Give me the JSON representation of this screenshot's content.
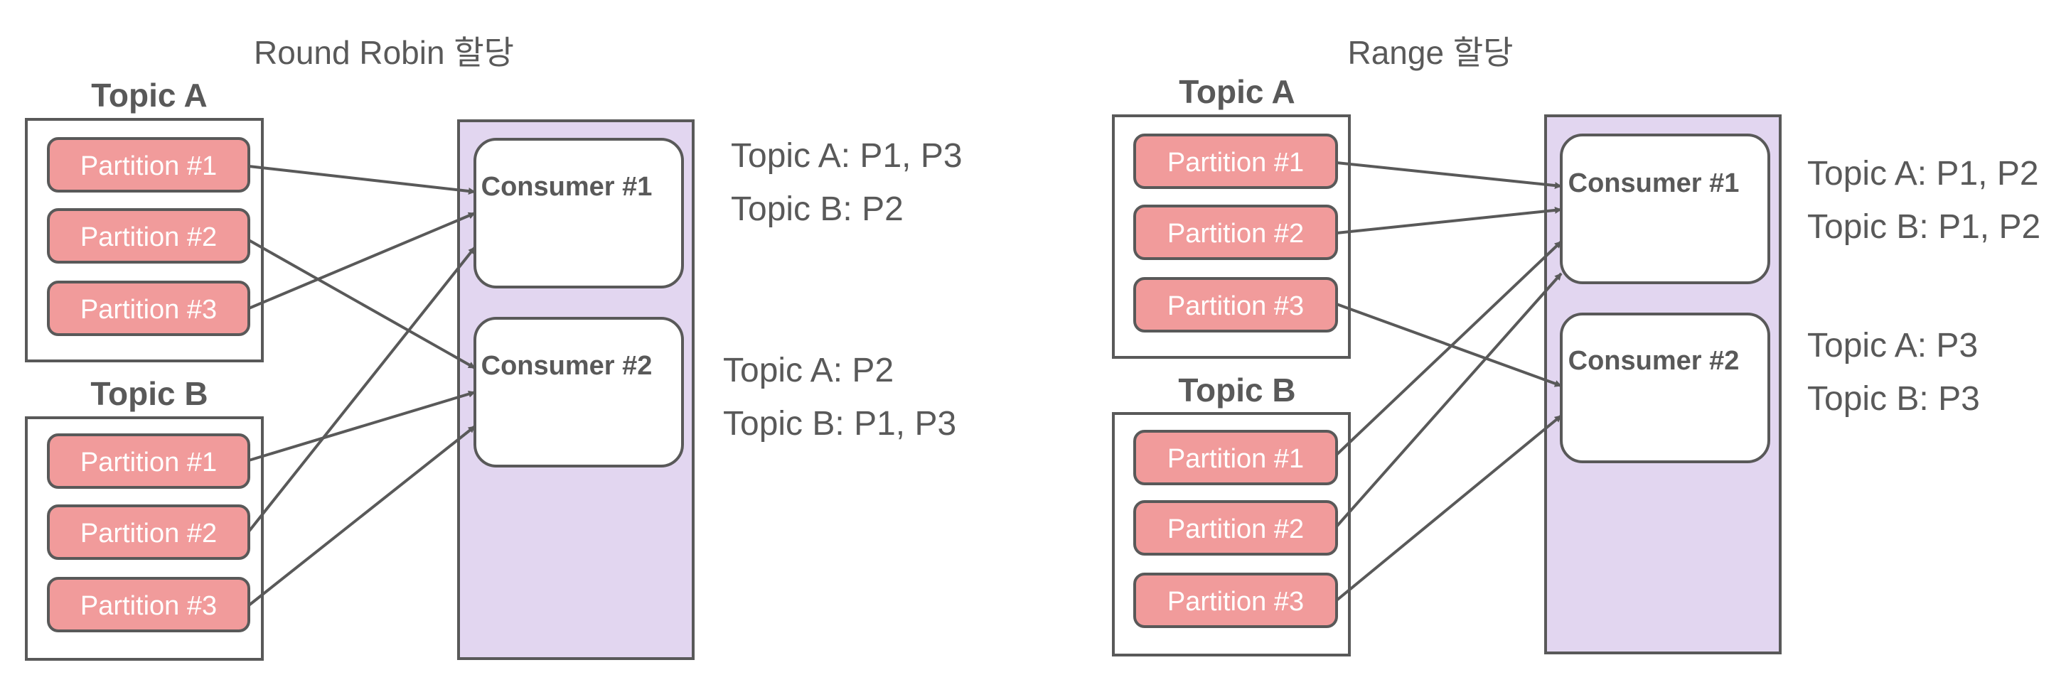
{
  "colors": {
    "text": "#595959",
    "partition_fill": "#f19b9b",
    "box_stroke": "#595959",
    "group_fill": "#e2d6f0",
    "arrow": "#595959"
  },
  "diagrams": [
    {
      "title": "Round Robin 할당",
      "topics": [
        {
          "name": "Topic A",
          "partitions": [
            "Partition #1",
            "Partition #2",
            "Partition #3"
          ]
        },
        {
          "name": "Topic B",
          "partitions": [
            "Partition #1",
            "Partition #2",
            "Partition #3"
          ]
        }
      ],
      "consumers": [
        {
          "name": "Consumer #1",
          "assignments": [
            "Topic A: P1, P3",
            "Topic B: P2"
          ]
        },
        {
          "name": "Consumer #2",
          "assignments": [
            "Topic A: P2",
            "Topic B: P1, P3"
          ]
        }
      ],
      "edges": [
        {
          "topic": 0,
          "partition": 0,
          "consumer": 0
        },
        {
          "topic": 0,
          "partition": 1,
          "consumer": 1
        },
        {
          "topic": 0,
          "partition": 2,
          "consumer": 0
        },
        {
          "topic": 1,
          "partition": 0,
          "consumer": 1
        },
        {
          "topic": 1,
          "partition": 1,
          "consumer": 0
        },
        {
          "topic": 1,
          "partition": 2,
          "consumer": 1
        }
      ]
    },
    {
      "title": "Range 할당",
      "topics": [
        {
          "name": "Topic A",
          "partitions": [
            "Partition #1",
            "Partition #2",
            "Partition #3"
          ]
        },
        {
          "name": "Topic B",
          "partitions": [
            "Partition #1",
            "Partition #2",
            "Partition #3"
          ]
        }
      ],
      "consumers": [
        {
          "name": "Consumer #1",
          "assignments": [
            "Topic A: P1, P2",
            "Topic B: P1, P2"
          ]
        },
        {
          "name": "Consumer #2",
          "assignments": [
            "Topic A: P3",
            "Topic B: P3"
          ]
        }
      ],
      "edges": [
        {
          "topic": 0,
          "partition": 0,
          "consumer": 0
        },
        {
          "topic": 0,
          "partition": 1,
          "consumer": 0
        },
        {
          "topic": 0,
          "partition": 2,
          "consumer": 1
        },
        {
          "topic": 1,
          "partition": 0,
          "consumer": 0
        },
        {
          "topic": 1,
          "partition": 1,
          "consumer": 0
        },
        {
          "topic": 1,
          "partition": 2,
          "consumer": 1
        }
      ]
    }
  ]
}
